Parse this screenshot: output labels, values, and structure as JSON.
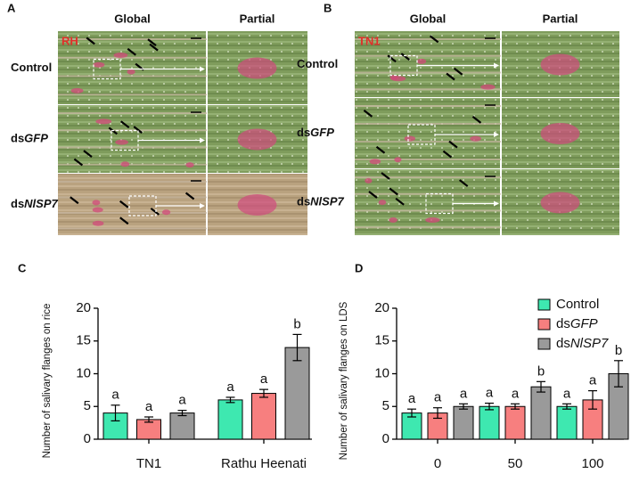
{
  "image_panels": [
    {
      "label": "A",
      "tag": "RH",
      "columns": [
        "Global",
        "Partial"
      ],
      "rows": [
        "Control",
        "dsGFP",
        "dsNlSP7"
      ]
    },
    {
      "label": "B",
      "tag": "TN1",
      "columns": [
        "Global",
        "Partial"
      ],
      "rows": [
        "Control",
        "dsGFP",
        "dsNlSP7"
      ]
    }
  ],
  "chart_data": [
    {
      "type": "bar",
      "panel_label": "C",
      "y_label": "Number of salivary flanges on rice",
      "categories": [
        "TN1",
        "Rathu Heenati"
      ],
      "series": [
        {
          "name": "Control",
          "color": "#3ee8b0",
          "values": [
            4,
            6
          ],
          "errors": [
            1.2,
            0.4
          ],
          "letters": [
            "a",
            "a"
          ]
        },
        {
          "name": "dsGFP",
          "color": "#f77f7f",
          "values": [
            3,
            7
          ],
          "errors": [
            0.4,
            0.6
          ],
          "letters": [
            "a",
            "a"
          ]
        },
        {
          "name": "dsNlSP7",
          "color": "#9a9a9a",
          "values": [
            4,
            14
          ],
          "errors": [
            0.4,
            2
          ],
          "letters": [
            "a",
            "b"
          ]
        }
      ],
      "ylim": [
        0,
        20
      ],
      "yticks": [
        0,
        5,
        10,
        15,
        20
      ]
    },
    {
      "type": "bar",
      "panel_label": "D",
      "y_label": "Number of salivary flanges on LDS",
      "categories": [
        "0",
        "50",
        "100"
      ],
      "series": [
        {
          "name": "Control",
          "color": "#3ee8b0",
          "values": [
            4,
            5,
            5
          ],
          "errors": [
            0.6,
            0.5,
            0.4
          ],
          "letters": [
            "a",
            "a",
            "a"
          ]
        },
        {
          "name": "dsGFP",
          "color": "#f77f7f",
          "values": [
            4,
            5,
            6
          ],
          "errors": [
            0.8,
            0.4,
            1.4
          ],
          "letters": [
            "a",
            "a",
            "a"
          ]
        },
        {
          "name": "dsNlSP7",
          "color": "#9a9a9a",
          "values": [
            5,
            8,
            10
          ],
          "errors": [
            0.4,
            0.8,
            2
          ],
          "letters": [
            "a",
            "b",
            "b"
          ]
        }
      ],
      "ylim": [
        0,
        20
      ],
      "yticks": [
        0,
        5,
        10,
        15,
        20
      ],
      "legend": "upper right"
    }
  ]
}
